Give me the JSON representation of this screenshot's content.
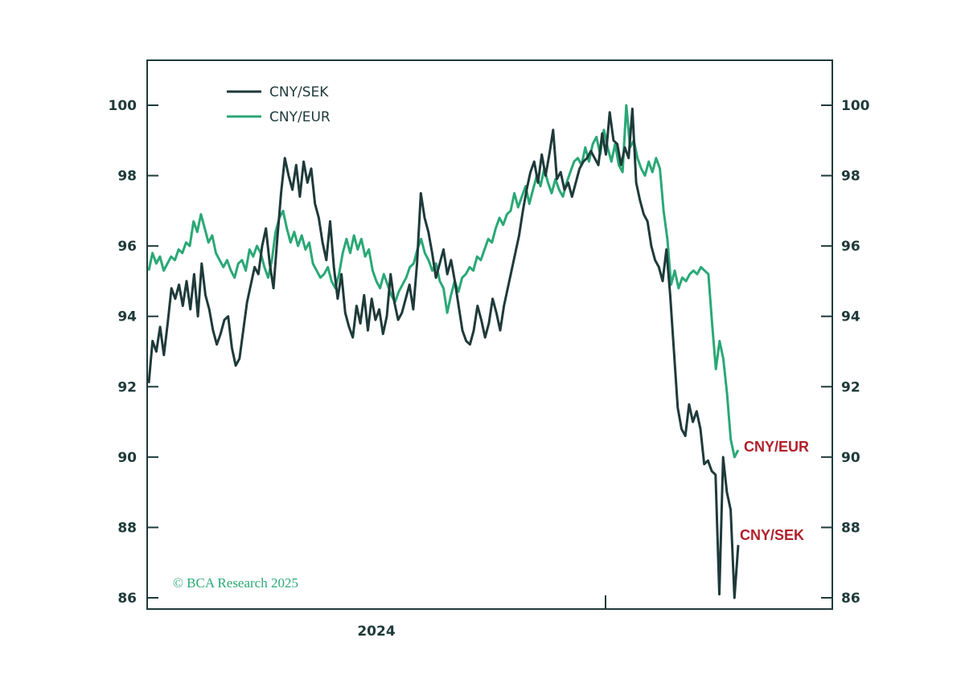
{
  "chart_data": {
    "type": "line",
    "title": "",
    "xlabel": "",
    "ylabel": "",
    "ylim": [
      86,
      101.3
    ],
    "yticks": [
      86,
      88,
      90,
      92,
      94,
      96,
      98,
      100
    ],
    "x_tick_labels": [
      "2024"
    ],
    "legend_placement": "top-left",
    "grid": false,
    "series": [
      {
        "name": "CNY/SEK",
        "color": "#1f3a3a",
        "values": [
          92.1,
          93.3,
          93.0,
          93.7,
          92.9,
          93.8,
          94.8,
          94.5,
          94.9,
          94.3,
          95.0,
          94.2,
          95.2,
          94.0,
          95.5,
          94.6,
          94.2,
          93.6,
          93.2,
          93.5,
          93.9,
          94.0,
          93.1,
          92.6,
          92.8,
          93.6,
          94.4,
          94.9,
          95.4,
          95.2,
          96.0,
          96.5,
          95.5,
          94.8,
          96.2,
          97.5,
          98.5,
          98.0,
          97.6,
          98.3,
          97.4,
          98.4,
          97.8,
          98.2,
          97.2,
          96.8,
          96.1,
          95.6,
          96.7,
          95.4,
          94.5,
          95.2,
          94.1,
          93.7,
          93.4,
          94.3,
          93.8,
          94.6,
          93.6,
          94.5,
          93.9,
          94.2,
          93.5,
          94.0,
          95.2,
          94.4,
          93.9,
          94.1,
          94.5,
          94.9,
          94.2,
          95.5,
          97.5,
          96.8,
          96.4,
          95.8,
          95.1,
          95.5,
          95.9,
          95.2,
          95.6,
          95.0,
          94.3,
          93.6,
          93.3,
          93.2,
          93.6,
          94.3,
          93.9,
          93.4,
          93.8,
          94.5,
          94.1,
          93.6,
          94.3,
          94.8,
          95.3,
          95.8,
          96.3,
          97.0,
          97.6,
          98.1,
          98.4,
          97.8,
          98.6,
          98.0,
          98.6,
          99.3,
          97.9,
          98.1,
          97.6,
          97.8,
          97.4,
          97.8,
          98.2,
          98.4,
          98.5,
          98.7,
          98.5,
          98.3,
          99.2,
          98.6,
          99.8,
          99.0,
          98.9,
          98.3,
          98.8,
          98.5,
          99.9,
          97.8,
          97.3,
          96.9,
          96.7,
          96.0,
          95.6,
          95.4,
          95.0,
          95.9,
          94.6,
          93.0,
          91.4,
          90.8,
          90.6,
          91.5,
          91.0,
          91.3,
          90.8,
          89.8,
          89.9,
          89.6,
          89.5,
          86.1,
          90.0,
          89.0,
          88.5,
          86.0,
          87.5
        ]
      },
      {
        "name": "CNY/EUR",
        "color": "#2aa876",
        "values": [
          95.3,
          95.8,
          95.5,
          95.7,
          95.3,
          95.5,
          95.7,
          95.6,
          95.9,
          95.8,
          96.1,
          96.0,
          96.7,
          96.4,
          96.9,
          96.5,
          96.1,
          96.3,
          95.8,
          95.6,
          95.4,
          95.6,
          95.3,
          95.1,
          95.5,
          95.6,
          95.3,
          95.9,
          95.7,
          96.0,
          95.8,
          95.4,
          95.1,
          95.6,
          96.4,
          96.8,
          97.0,
          96.5,
          96.1,
          96.4,
          96.0,
          96.3,
          95.9,
          96.1,
          95.5,
          95.3,
          95.1,
          95.2,
          95.4,
          95.0,
          94.8,
          95.2,
          95.8,
          96.2,
          95.8,
          96.3,
          95.9,
          96.2,
          95.7,
          95.9,
          95.3,
          95.0,
          94.8,
          95.2,
          94.9,
          94.6,
          94.4,
          94.7,
          94.9,
          95.1,
          95.4,
          95.5,
          95.9,
          96.2,
          95.8,
          95.6,
          95.3,
          95.5,
          95.0,
          94.8,
          94.1,
          94.6,
          95.0,
          94.7,
          95.1,
          95.2,
          95.4,
          95.3,
          95.7,
          95.6,
          95.9,
          96.2,
          96.1,
          96.5,
          96.8,
          96.6,
          96.9,
          97.0,
          97.5,
          97.1,
          97.4,
          97.7,
          97.2,
          97.6,
          98.0,
          97.7,
          98.2,
          97.8,
          97.5,
          97.9,
          97.6,
          97.4,
          97.8,
          98.1,
          98.4,
          98.5,
          98.3,
          98.8,
          98.4,
          98.9,
          99.1,
          98.6,
          99.3,
          98.8,
          98.4,
          98.9,
          98.3,
          98.1,
          100.0,
          98.8,
          99.0,
          98.5,
          98.2,
          98.0,
          98.4,
          98.1,
          98.5,
          98.2,
          97.0,
          96.2,
          94.9,
          95.3,
          94.8,
          95.1,
          95.0,
          95.2,
          95.3,
          95.2,
          95.4,
          95.3,
          95.2,
          93.8,
          92.5,
          93.3,
          92.8,
          91.8,
          90.5,
          90.0,
          90.2
        ]
      }
    ],
    "annotations": [
      {
        "text": "CNY/EUR",
        "series": "CNY/EUR",
        "color": "#b0202a"
      },
      {
        "text": "CNY/SEK",
        "series": "CNY/SEK",
        "color": "#b0202a"
      }
    ]
  },
  "legend": {
    "items": [
      {
        "label": "CNY/SEK",
        "color": "#1f3a3a"
      },
      {
        "label": "CNY/EUR",
        "color": "#2aa876"
      }
    ]
  },
  "end_labels": {
    "eur": "CNY/EUR",
    "sek": "CNY/SEK"
  },
  "copyright": "© BCA Research 2025",
  "colors": {
    "frame": "#1f3a3a",
    "sek_line": "#1f3a3a",
    "eur_line": "#2aa876",
    "annotation": "#b0202a"
  }
}
